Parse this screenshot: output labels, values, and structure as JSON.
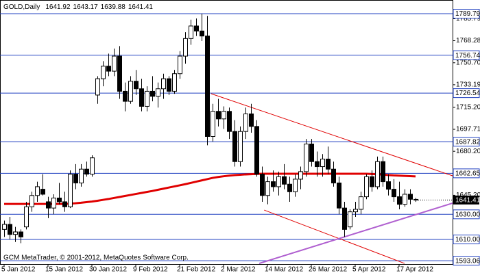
{
  "chart_data": {
    "type": "candlestick",
    "title": "GOLD,Daily",
    "footer": "GCM MetaTrader, © 2001-2012, MetaQuotes Software Corp.",
    "categories": [
      "5 Jan 2012",
      null,
      null,
      null,
      null,
      null,
      null,
      null,
      "15 Jan 2012",
      null,
      null,
      null,
      null,
      null,
      null,
      null,
      "30 Jan 2012",
      null,
      null,
      null,
      null,
      null,
      null,
      null,
      "9 Feb 2012",
      null,
      null,
      null,
      null,
      null,
      null,
      null,
      "21 Feb 2012",
      null,
      null,
      null,
      null,
      null,
      null,
      null,
      "2 Mar 2012",
      null,
      null,
      null,
      null,
      null,
      null,
      null,
      "14 Mar 2012",
      null,
      null,
      null,
      null,
      null,
      null,
      null,
      "26 Mar 2012",
      null,
      null,
      null,
      null,
      null,
      null,
      null,
      "5 Apr 2012",
      null,
      null,
      null,
      null,
      null,
      null,
      null,
      "17 Apr 2012",
      null,
      null,
      null
    ],
    "open": [
      1618,
      1622,
      1614,
      1616,
      1620,
      1636,
      1645,
      1650,
      1640,
      1635,
      1643,
      1640,
      1636,
      1662,
      1655,
      1666,
      1662,
      1725,
      1738,
      1748,
      1744,
      1756,
      1728,
      1720,
      1736,
      1730,
      1716,
      1728,
      1724,
      1730,
      1738,
      1728,
      1742,
      1756,
      1770,
      1780,
      1776,
      1772,
      1692,
      1712,
      1706,
      1712,
      1696,
      1672,
      1696,
      1710,
      1700,
      1662,
      1645,
      1656,
      1652,
      1660,
      1654,
      1648,
      1658,
      1664,
      1686,
      1672,
      1668,
      1674,
      1666,
      1655,
      1635,
      1620,
      1632,
      1634,
      1644,
      1660,
      1652,
      1672,
      1656,
      1650,
      1644,
      1638,
      1646,
      1641.92
    ],
    "high": [
      1625,
      1628,
      1620,
      1618,
      1640,
      1648,
      1656,
      1662,
      1644,
      1646,
      1655,
      1648,
      1665,
      1670,
      1670,
      1672,
      1677,
      1740,
      1752,
      1758,
      1762,
      1764,
      1735,
      1740,
      1745,
      1738,
      1732,
      1740,
      1735,
      1742,
      1740,
      1745,
      1760,
      1775,
      1785,
      1786,
      1789.79,
      1788,
      1718,
      1722,
      1716,
      1715,
      1705,
      1700,
      1715,
      1718,
      1705,
      1668,
      1660,
      1665,
      1664,
      1670,
      1660,
      1662,
      1668,
      1690,
      1690,
      1680,
      1678,
      1684,
      1672,
      1660,
      1640,
      1634,
      1640,
      1648,
      1662,
      1665,
      1676,
      1676,
      1662,
      1658,
      1656,
      1650,
      1650,
      1643.17
    ],
    "low": [
      1612,
      1610,
      1608,
      1607,
      1618,
      1632,
      1640,
      1645,
      1627,
      1630,
      1638,
      1632,
      1635,
      1650,
      1652,
      1660,
      1660,
      1718,
      1732,
      1740,
      1740,
      1722,
      1712,
      1718,
      1725,
      1712,
      1712,
      1720,
      1715,
      1722,
      1725,
      1726,
      1738,
      1750,
      1765,
      1772,
      1768,
      1685,
      1688,
      1700,
      1698,
      1690,
      1668,
      1668,
      1690,
      1695,
      1660,
      1640,
      1638,
      1648,
      1645,
      1650,
      1640,
      1644,
      1650,
      1660,
      1668,
      1660,
      1660,
      1662,
      1652,
      1630,
      1612,
      1618,
      1628,
      1630,
      1642,
      1648,
      1650,
      1652,
      1645,
      1640,
      1634,
      1636,
      1638,
      1639.88
    ],
    "close": [
      1622,
      1614,
      1616,
      1612,
      1636,
      1645,
      1652,
      1646,
      1635,
      1643,
      1640,
      1636,
      1662,
      1655,
      1666,
      1662,
      1675,
      1738,
      1748,
      1744,
      1756,
      1728,
      1720,
      1736,
      1730,
      1716,
      1728,
      1724,
      1730,
      1738,
      1728,
      1742,
      1756,
      1770,
      1780,
      1776,
      1772,
      1692,
      1712,
      1706,
      1712,
      1696,
      1672,
      1696,
      1710,
      1700,
      1662,
      1645,
      1656,
      1652,
      1660,
      1654,
      1648,
      1658,
      1664,
      1686,
      1672,
      1668,
      1674,
      1666,
      1655,
      1635,
      1618,
      1632,
      1634,
      1644,
      1660,
      1652,
      1672,
      1656,
      1650,
      1644,
      1638,
      1646,
      1642,
      1641.41
    ],
    "up_color": "#ffffff",
    "down_color": "#000000",
    "moving_average": {
      "color": "#e00000",
      "values": [
        1638.3,
        1638.3,
        1638.3,
        1638.3,
        1638.3,
        1638.3,
        1638.3,
        1638.3,
        1638.3,
        1638.3,
        1638.3,
        1638.3,
        1638.5,
        1638.8,
        1639.2,
        1639.7,
        1640.2,
        1640.8,
        1641.5,
        1642.2,
        1643.0,
        1643.8,
        1644.6,
        1645.4,
        1646.2,
        1647.0,
        1647.8,
        1648.6,
        1649.5,
        1650.4,
        1651.3,
        1652.2,
        1653.1,
        1654.0,
        1655.0,
        1656.0,
        1657.0,
        1658.0,
        1659.0,
        1659.7,
        1660.3,
        1660.8,
        1661.2,
        1661.5,
        1661.8,
        1662.0,
        1662.2,
        1662.3,
        1662.3,
        1662.3,
        1662.3,
        1662.3,
        1662.3,
        1662.3,
        1662.3,
        1662.3,
        1662.3,
        1662.3,
        1662.3,
        1662.3,
        1662.3,
        1662.3,
        1662.3,
        1662.3,
        1662.3,
        1662.3,
        1662.3,
        1662.1,
        1661.9,
        1661.6,
        1661.3,
        1661.0,
        1660.8,
        1660.6,
        1660.4,
        1660.2
      ]
    },
    "trendlines": [
      {
        "color": "#e00000",
        "x": [
          37.75,
          81.75
        ],
        "y": [
          1726.05,
          1660.67
        ]
      },
      {
        "color": "#e00000",
        "x": [
          47.4,
          73
        ],
        "y": [
          1633.4,
          1590.9
        ]
      },
      {
        "color": "#b060d0",
        "x": [
          46.5,
          81.75
        ],
        "y": [
          1590.9,
          1638.9
        ]
      }
    ],
    "levels": [
      1789.79,
      1756.74,
      1726.54,
      1687.82,
      1662.65,
      {
        "value": 1630,
        "label": "1630.00"
      },
      {
        "value": 1610,
        "label": "1610.00"
      },
      1593.06
    ],
    "level_color": "#2040c0",
    "ylim": [
      1590.4,
      1799.6
    ],
    "yticks": [
      1785.79,
      1768.28,
      {
        "value": 1750.7,
        "label": "1750.70"
      },
      1733.19,
      {
        "value": 1715.2,
        "label": "1715.20"
      },
      1697.71,
      {
        "value": 1680.2,
        "label": "1680.20"
      },
      {
        "value": 1645.2,
        "label": "1645.20"
      }
    ]
  }
}
